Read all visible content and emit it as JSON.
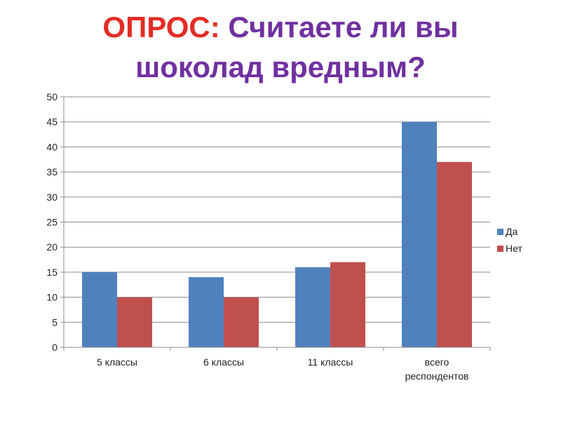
{
  "slide": {
    "title_prefix": "ОПРОС:",
    "title_line1_rest": "Считаете ли вы",
    "title_line2": "шоколад вредным?"
  },
  "colors": {
    "title_prefix": "#e32d25",
    "title_main": "#7030a0",
    "series_yes": "#4f81bd",
    "series_no": "#c0504d"
  },
  "chart_data": {
    "type": "bar",
    "categories": [
      "5 классы",
      "6 классы",
      "11 классы",
      "всего респондентов"
    ],
    "series": [
      {
        "name": "Да",
        "values": [
          15,
          14,
          16,
          45
        ],
        "color": "#4f81bd"
      },
      {
        "name": "Нет",
        "values": [
          10,
          10,
          17,
          37
        ],
        "color": "#c0504d"
      }
    ],
    "title": "",
    "xlabel": "",
    "ylabel": "",
    "ylim": [
      0,
      50
    ],
    "yticks": [
      0,
      5,
      10,
      15,
      20,
      25,
      30,
      35,
      40,
      45,
      50
    ],
    "grid": true,
    "legend_position": "right"
  }
}
